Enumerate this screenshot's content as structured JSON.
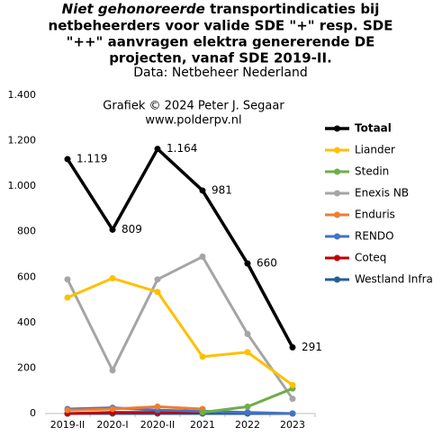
{
  "chart_data": {
    "type": "line",
    "title_emphasis": "Niet gehonoreerde",
    "title": [
      " transportindicaties bij",
      "netbeheerders voor valide SDE \"+\" resp. SDE",
      "\"++\" aanvragen elektra genererende DE",
      "projecten, vanaf SDE 2019-II."
    ],
    "subtitle": "Data: Netbeheer Nederland",
    "annotations": [
      "Grafiek  © 2024  Peter J. Segaar",
      "www.polderpv.nl"
    ],
    "categories": [
      "2019-II",
      "2020-I",
      "2020-II",
      "2021",
      "2022",
      "2023"
    ],
    "ylim": [
      0,
      1400
    ],
    "yticks": [
      0,
      200,
      400,
      600,
      800,
      {
        "value": 1000,
        "label": "1.000"
      },
      {
        "value": 1200,
        "label": "1.200"
      },
      {
        "value": 1400,
        "label": "1.400"
      }
    ],
    "legend": "right",
    "series": [
      {
        "name": "Totaal",
        "color": "#000000",
        "values": [
          1119,
          809,
          1164,
          981,
          660,
          291
        ],
        "value_labels": [
          "1.119",
          "809",
          "1.164",
          "981",
          "660",
          "291"
        ]
      },
      {
        "name": "Liander",
        "color": "#ffc000",
        "values": [
          510,
          595,
          535,
          250,
          270,
          125
        ]
      },
      {
        "name": "Stedin",
        "color": "#70ad47",
        "values": [
          null,
          null,
          null,
          5,
          30,
          110
        ]
      },
      {
        "name": "Enexis NB",
        "color": "#a5a5a5",
        "values": [
          590,
          190,
          590,
          690,
          350,
          65
        ]
      },
      {
        "name": "Enduris",
        "color": "#ed7d31",
        "values": [
          15,
          20,
          30,
          20,
          null,
          null
        ]
      },
      {
        "name": "RENDO",
        "color": "#4472c4",
        "values": [
          20,
          25,
          15,
          10,
          5,
          0
        ]
      },
      {
        "name": "Coteq",
        "color": "#c00000",
        "values": [
          0,
          5,
          5,
          5,
          null,
          null
        ]
      },
      {
        "name": "Westland Infra",
        "color": "#255e91",
        "values": [
          0,
          0,
          0,
          0,
          0,
          0
        ]
      }
    ]
  }
}
